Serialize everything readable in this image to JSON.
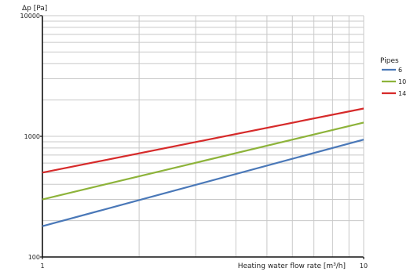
{
  "chart_data": {
    "type": "line",
    "ylabel": "Δp [Pa]",
    "xlabel": "Heating water flow rate [m³/h]",
    "xscale": "log",
    "yscale": "log",
    "xlim": [
      1,
      10
    ],
    "ylim": [
      100,
      10000
    ],
    "x_ticks": [
      "1",
      "10"
    ],
    "y_ticks": [
      "100",
      "1000",
      "10000"
    ],
    "grid": "on (major and minor, log)",
    "legend": {
      "title": "Pipes",
      "position": "right"
    },
    "series": [
      {
        "name": "6",
        "color": "#4a78b8",
        "x": [
          1,
          10
        ],
        "y": [
          180,
          940
        ]
      },
      {
        "name": "10",
        "color": "#8db33a",
        "x": [
          1,
          10
        ],
        "y": [
          300,
          1300
        ]
      },
      {
        "name": "14",
        "color": "#d62a2a",
        "x": [
          1,
          10
        ],
        "y": [
          500,
          1700
        ]
      }
    ]
  }
}
